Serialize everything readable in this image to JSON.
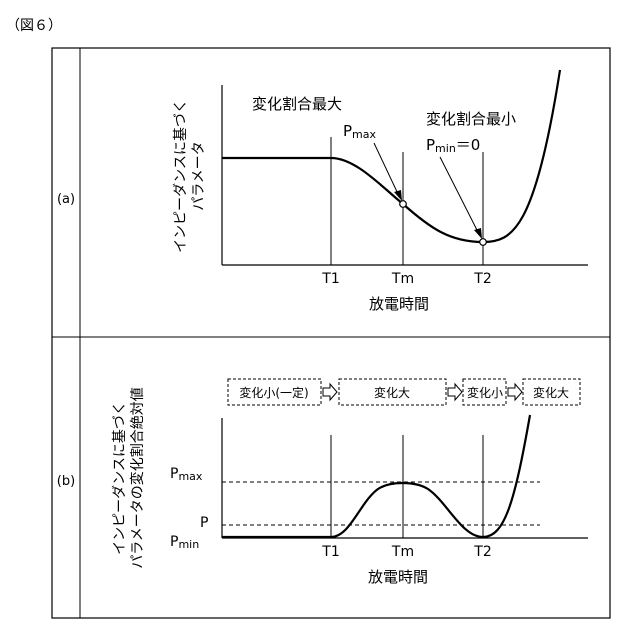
{
  "figure_label": "（図６）",
  "panel_a": {
    "label": "(a)",
    "ylabel_line1": "インピーダンスに基づく",
    "ylabel_line2": "パラメータ",
    "xlabel": "放電時間",
    "ticks": [
      "T1",
      "Tm",
      "T2"
    ],
    "annotation_max_title": "変化割合最大",
    "annotation_max_p": "P",
    "annotation_max_sub": "max",
    "annotation_min_title": "変化割合最小",
    "annotation_min_p": "P",
    "annotation_min_sub": "min",
    "annotation_min_value": "＝0"
  },
  "panel_b": {
    "label": "(b)",
    "ylabel_line1": "インピーダンスに基づく",
    "ylabel_line2": "パラメータの変化割合絶対値",
    "xlabel": "放電時間",
    "ticks": [
      "T1",
      "Tm",
      "T2"
    ],
    "y_pmax_p": "P",
    "y_pmax_sub": "max",
    "y_p": "P",
    "y_pmin_p": "P",
    "y_pmin_sub": "min",
    "phases": [
      "変化小(一定)",
      "変化大",
      "変化小",
      "変化大"
    ]
  },
  "colors": {
    "line": "#000000",
    "background": "#ffffff"
  }
}
